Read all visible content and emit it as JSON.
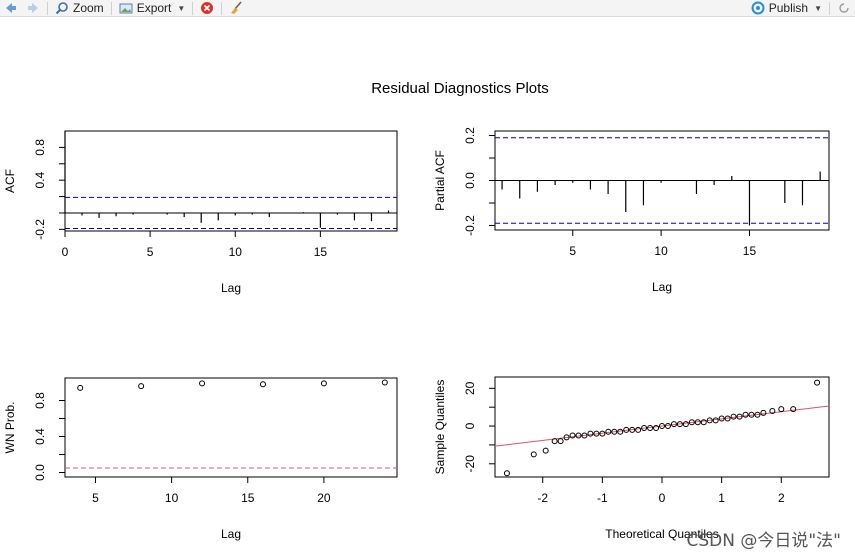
{
  "toolbar": {
    "zoom_label": "Zoom",
    "export_label": "Export",
    "publish_label": "Publish"
  },
  "watermark": "CSDN @今日说\"法\"",
  "chart_data": {
    "title": "Residual Diagnostics Plots",
    "panels": [
      {
        "type": "bar",
        "subtype": "acf",
        "xlabel": "Lag",
        "ylabel": "ACF",
        "xlim": [
          0,
          19.5
        ],
        "ylim": [
          -0.22,
          1.0
        ],
        "xticks": [
          0,
          5,
          10,
          15
        ],
        "yticks": [
          -0.2,
          0.0,
          0.2,
          0.4,
          0.6,
          0.8
        ],
        "ytick_labels": [
          "-0.2",
          "",
          "",
          "0.4",
          "",
          "0.8"
        ],
        "confidence_bounds": [
          0.19,
          -0.19
        ],
        "bound_color": "#0000cc",
        "x": [
          0,
          1,
          2,
          3,
          4,
          5,
          6,
          7,
          8,
          9,
          10,
          11,
          12,
          13,
          14,
          15,
          16,
          17,
          18,
          19
        ],
        "values": [
          1.0,
          -0.03,
          -0.06,
          -0.04,
          -0.02,
          0.0,
          -0.02,
          -0.05,
          -0.12,
          -0.09,
          -0.03,
          -0.02,
          -0.05,
          0.0,
          0.01,
          -0.18,
          -0.02,
          -0.09,
          -0.1,
          0.03
        ]
      },
      {
        "type": "bar",
        "subtype": "pacf",
        "xlabel": "Lag",
        "ylabel": "Partial ACF",
        "xlim": [
          0.6,
          19.5
        ],
        "ylim": [
          -0.22,
          0.22
        ],
        "xticks": [
          5,
          10,
          15
        ],
        "yticks": [
          -0.2,
          -0.1,
          0.0,
          0.1,
          0.2
        ],
        "ytick_labels": [
          "-0.2",
          "",
          "0.0",
          "",
          "0.2"
        ],
        "confidence_bounds": [
          0.19,
          -0.19
        ],
        "bound_color": "#0000cc",
        "x": [
          1,
          2,
          3,
          4,
          5,
          6,
          7,
          8,
          9,
          10,
          11,
          12,
          13,
          14,
          15,
          16,
          17,
          18,
          19
        ],
        "values": [
          -0.04,
          -0.08,
          -0.05,
          -0.02,
          -0.01,
          -0.04,
          -0.06,
          -0.14,
          -0.11,
          -0.01,
          0.0,
          -0.06,
          -0.02,
          0.02,
          -0.2,
          0.0,
          -0.1,
          -0.11,
          0.04
        ]
      },
      {
        "type": "scatter",
        "subtype": "ljung-box",
        "xlabel": "Lag",
        "ylabel": "WN Prob.",
        "xlim": [
          3,
          24.8
        ],
        "ylim": [
          -0.05,
          1.05
        ],
        "xticks": [
          5,
          10,
          15,
          20
        ],
        "yticks": [
          0.0,
          0.2,
          0.4,
          0.6,
          0.8
        ],
        "ytick_labels": [
          "0.0",
          "",
          "0.4",
          "",
          "0.8"
        ],
        "reference_line": 0.05,
        "reference_color": "#df536b",
        "x": [
          4,
          8,
          12,
          16,
          20,
          24
        ],
        "values": [
          0.94,
          0.96,
          0.99,
          0.98,
          0.99,
          1.0
        ]
      },
      {
        "type": "scatter",
        "subtype": "qq",
        "xlabel": "Theoretical Quantiles",
        "ylabel": "Sample Quantiles",
        "xlim": [
          -2.8,
          2.8
        ],
        "ylim": [
          -27,
          26
        ],
        "xticks": [
          -2,
          -1,
          0,
          1,
          2
        ],
        "yticks": [
          -20,
          -10,
          0,
          10,
          20
        ],
        "ytick_labels": [
          "-20",
          "",
          "0",
          "",
          "20"
        ],
        "line": {
          "intercept": 0.0,
          "slope": 3.8,
          "color": "#df536b"
        },
        "x": [
          -2.6,
          -2.15,
          -1.95,
          -1.8,
          -1.7,
          -1.6,
          -1.5,
          -1.4,
          -1.3,
          -1.2,
          -1.1,
          -1.0,
          -0.9,
          -0.8,
          -0.7,
          -0.6,
          -0.5,
          -0.4,
          -0.3,
          -0.2,
          -0.1,
          0.0,
          0.1,
          0.2,
          0.3,
          0.4,
          0.5,
          0.6,
          0.7,
          0.8,
          0.9,
          1.0,
          1.1,
          1.2,
          1.3,
          1.4,
          1.5,
          1.6,
          1.7,
          1.85,
          2.0,
          2.2,
          2.6
        ],
        "values": [
          -25,
          -15,
          -13,
          -8,
          -8,
          -6,
          -5,
          -5,
          -5,
          -4,
          -4,
          -4,
          -3,
          -3,
          -3,
          -2,
          -2,
          -2,
          -1,
          -1,
          -1,
          0,
          0,
          1,
          1,
          1,
          2,
          2,
          2,
          3,
          3,
          4,
          4,
          5,
          5,
          6,
          6,
          6,
          7,
          8,
          9,
          9,
          23
        ]
      }
    ]
  }
}
